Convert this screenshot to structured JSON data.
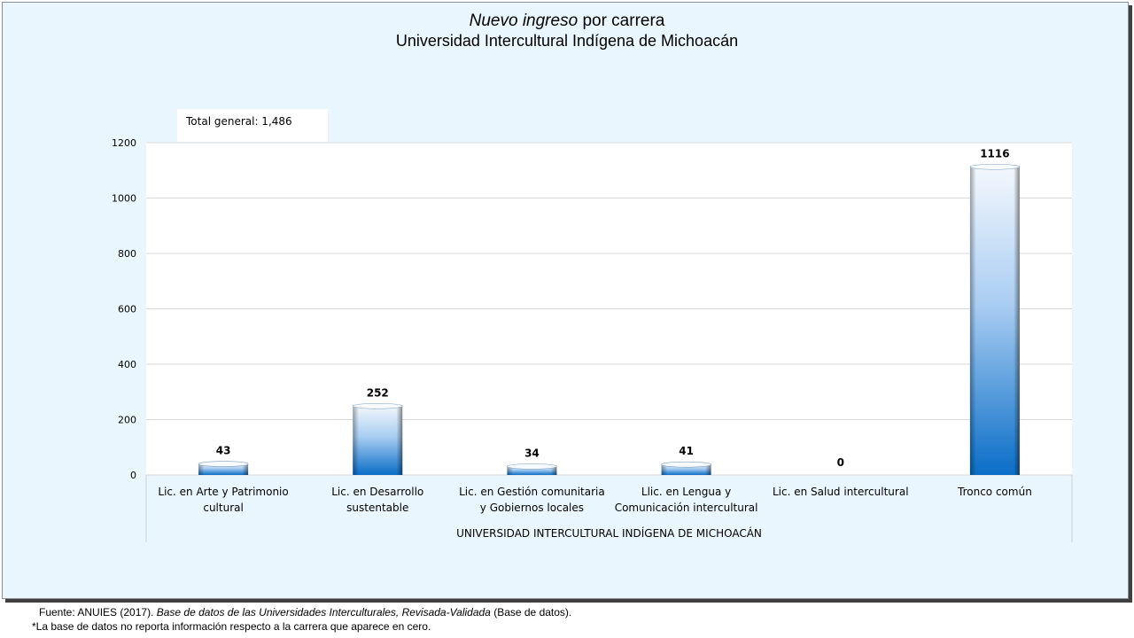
{
  "title": {
    "italic": "Nuevo ingreso",
    "rest": "por carrera",
    "subtitle": "Universidad Intercultural Indígena de Michoacán"
  },
  "note": "Total general: 1,486",
  "footer": {
    "source_prefix": "Fuente: ANUIES (2017).",
    "source_italic": "Base de datos de las Universidades Interculturales, Revisada-Validada",
    "source_suffix": "(Base de datos).",
    "footnote_mark": "*",
    "footnote": "La base de datos no reporta información respecto a la carrera que aparece en cero."
  },
  "chart_data": {
    "type": "bar",
    "categories": [
      [
        "Lic. en Arte y Patrimonio",
        "cultural"
      ],
      [
        "Lic. en Desarrollo",
        "sustentable"
      ],
      [
        "Lic. en Gestión comunitaria",
        "y Gobiernos locales"
      ],
      [
        "Llic. en Lengua y",
        "Comunicación intercultural"
      ],
      [
        "Lic. en Salud intercultural"
      ],
      [
        "Tronco común"
      ]
    ],
    "values": [
      43,
      252,
      34,
      41,
      0,
      1116
    ],
    "xgroup_label": "UNIVERSIDAD INTERCULTURAL INDÍGENA DE MICHOACÁN",
    "ylim": [
      0,
      1200
    ],
    "yticks": [
      0,
      200,
      400,
      600,
      800,
      1000,
      1200
    ],
    "grid": true,
    "bar_colors": {
      "top": "#f4f8fd",
      "mid": "#a9cdf2",
      "bottom": "#0a6ec7"
    }
  }
}
